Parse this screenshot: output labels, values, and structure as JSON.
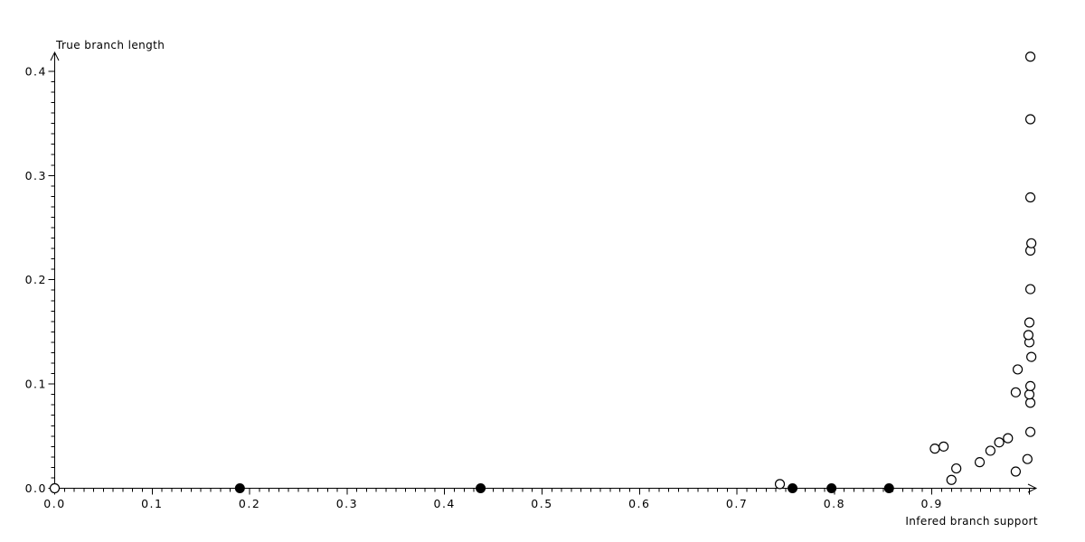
{
  "chart_data": {
    "type": "scatter",
    "title": "",
    "xlabel": "Infered branch support",
    "ylabel": "True branch length",
    "xlim": [
      0.0,
      1.007
    ],
    "ylim": [
      0.0,
      0.417
    ],
    "x_tick_labels": [
      "0.0",
      "0.1",
      "0.2",
      "0.3",
      "0.4",
      "0.5",
      "0.6",
      "0.7",
      "0.8",
      "0.9"
    ],
    "y_tick_labels": [
      "0.0",
      "0.1",
      "0.2",
      "0.3",
      "0.4"
    ],
    "x_major_step": 0.1,
    "y_major_step": 0.1,
    "minor_tick_step": 0.01,
    "grid": false,
    "legend": "none",
    "marker_color": "#000000",
    "background_color": "#ffffff",
    "series": [
      {
        "name": "open-circles",
        "marker": "circle-open",
        "points": [
          [
            0.0,
            0.0
          ],
          [
            0.744,
            0.004
          ],
          [
            0.92,
            0.008
          ],
          [
            0.903,
            0.038
          ],
          [
            0.912,
            0.04
          ],
          [
            0.925,
            0.019
          ],
          [
            0.949,
            0.025
          ],
          [
            0.96,
            0.036
          ],
          [
            0.969,
            0.044
          ],
          [
            0.978,
            0.048
          ],
          [
            0.986,
            0.016
          ],
          [
            0.998,
            0.028
          ],
          [
            1.001,
            0.054
          ],
          [
            0.986,
            0.092
          ],
          [
            0.988,
            0.114
          ],
          [
            1.001,
            0.082
          ],
          [
            1.0,
            0.09
          ],
          [
            1.001,
            0.098
          ],
          [
            1.002,
            0.126
          ],
          [
            1.0,
            0.14
          ],
          [
            0.999,
            0.147
          ],
          [
            1.0,
            0.159
          ],
          [
            1.001,
            0.191
          ],
          [
            1.001,
            0.228
          ],
          [
            1.002,
            0.235
          ],
          [
            1.001,
            0.279
          ],
          [
            1.001,
            0.354
          ],
          [
            1.001,
            0.414
          ]
        ]
      },
      {
        "name": "filled-circles",
        "marker": "circle-filled",
        "points": [
          [
            0.19,
            0.0
          ],
          [
            0.437,
            0.0
          ],
          [
            0.757,
            0.0
          ],
          [
            0.797,
            0.0
          ],
          [
            0.856,
            0.0
          ]
        ]
      }
    ]
  }
}
